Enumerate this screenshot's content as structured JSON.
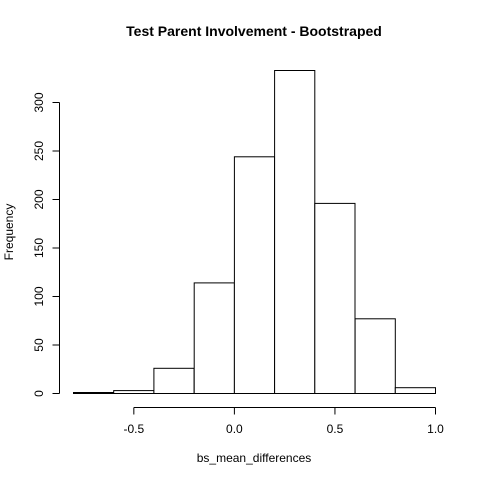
{
  "chart_data": {
    "type": "bar",
    "title": "Test Parent Involvement - Bootstraped",
    "xlabel": "bs_mean_differences",
    "ylabel": "Frequency",
    "bin_edges": [
      -0.8,
      -0.6,
      -0.4,
      -0.2,
      0.0,
      0.2,
      0.4,
      0.6,
      0.8,
      1.0
    ],
    "values": [
      1,
      3,
      26,
      114,
      244,
      333,
      196,
      77,
      6
    ],
    "xlim": [
      -0.8,
      1.0
    ],
    "ylim": [
      0,
      340
    ],
    "xticks": [
      -0.5,
      0.0,
      0.5,
      1.0
    ],
    "xtick_labels": [
      "-0.5",
      "0.0",
      "0.5",
      "1.0"
    ],
    "yticks": [
      0,
      50,
      100,
      150,
      200,
      250,
      300
    ],
    "ytick_labels": [
      "0",
      "50",
      "100",
      "150",
      "200",
      "250",
      "300"
    ],
    "grid": false,
    "legend": "none",
    "bar_fill": "#ffffff",
    "bar_stroke": "#000000"
  }
}
